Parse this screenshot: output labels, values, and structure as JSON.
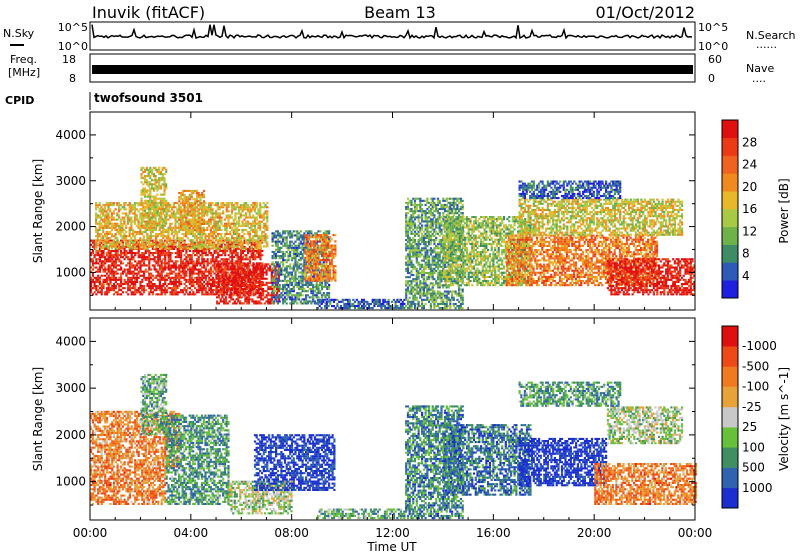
{
  "header": {
    "station": "Inuvik (fitACF)",
    "beam": "Beam 13",
    "date": "01/Oct/2012"
  },
  "sky_panel": {
    "left_label": "N.Sky",
    "right_label": "N.Search",
    "right_legend": "......",
    "left_ticks": [
      "10^5",
      "10^0"
    ],
    "right_ticks": [
      "10^5",
      "10^0"
    ]
  },
  "freq_panel": {
    "left_label_1": "Freq.",
    "left_label_2": "[MHz]",
    "left_ticks": [
      "18",
      "8"
    ],
    "right_ticks": [
      "60",
      "0"
    ],
    "right_label": "Nave",
    "right_legend": "...."
  },
  "cpid": {
    "label": "CPID",
    "value": "twofsound 3501"
  },
  "chart_data": [
    {
      "type": "heatmap",
      "quantity": "Power",
      "ylabel": "Slant Range [km]",
      "xlabel": "Time UT",
      "x_ticks": [
        "00:00",
        "04:00",
        "08:00",
        "12:00",
        "16:00",
        "20:00",
        "00:00"
      ],
      "x_range_hours": [
        0,
        24
      ],
      "y_ticks": [
        1000,
        2000,
        3000,
        4000
      ],
      "y_range_km": [
        180,
        4500
      ],
      "colorbar": {
        "label": "Power [dB]",
        "ticks": [
          4,
          8,
          12,
          16,
          20,
          24,
          28
        ],
        "colors": [
          "#1f1fe0",
          "#2f5bb8",
          "#3d8c66",
          "#6db34a",
          "#a8c943",
          "#e8b82a",
          "#f08a1f",
          "#f0621f",
          "#ec3a16",
          "#e01010"
        ]
      },
      "regions": [
        {
          "t0": 0.0,
          "t1": 6.8,
          "r0": 500,
          "r1": 1700,
          "level": 0.92
        },
        {
          "t0": 0.2,
          "t1": 7.0,
          "r0": 1500,
          "r1": 2500,
          "level": 0.55
        },
        {
          "t0": 2.0,
          "t1": 3.0,
          "r0": 2000,
          "r1": 3300,
          "level": 0.5
        },
        {
          "t0": 3.5,
          "t1": 4.5,
          "r0": 1900,
          "r1": 2800,
          "level": 0.6
        },
        {
          "t0": 5.0,
          "t1": 7.5,
          "r0": 300,
          "r1": 1200,
          "level": 0.95
        },
        {
          "t0": 7.2,
          "t1": 9.5,
          "r0": 300,
          "r1": 1900,
          "level": 0.25
        },
        {
          "t0": 8.5,
          "t1": 9.7,
          "r0": 800,
          "r1": 1800,
          "level": 0.7
        },
        {
          "t0": 9.0,
          "t1": 12.5,
          "r0": 200,
          "r1": 400,
          "level": 0.15
        },
        {
          "t0": 12.5,
          "t1": 14.8,
          "r0": 200,
          "r1": 2600,
          "level": 0.3
        },
        {
          "t0": 14.0,
          "t1": 17.5,
          "r0": 700,
          "r1": 2200,
          "level": 0.4
        },
        {
          "t0": 16.5,
          "t1": 22.5,
          "r0": 700,
          "r1": 1800,
          "level": 0.7
        },
        {
          "t0": 20.5,
          "t1": 24.0,
          "r0": 500,
          "r1": 1300,
          "level": 0.95
        },
        {
          "t0": 17.0,
          "t1": 23.5,
          "r0": 1800,
          "r1": 2600,
          "level": 0.5
        },
        {
          "t0": 17.0,
          "t1": 21.0,
          "r0": 2600,
          "r1": 3000,
          "level": 0.15
        }
      ]
    },
    {
      "type": "heatmap",
      "quantity": "Velocity",
      "ylabel": "Slant Range [km]",
      "xlabel": "Time UT",
      "x_ticks": [
        "00:00",
        "04:00",
        "08:00",
        "12:00",
        "16:00",
        "20:00",
        "00:00"
      ],
      "x_range_hours": [
        0,
        24
      ],
      "y_ticks": [
        1000,
        2000,
        3000,
        4000
      ],
      "y_range_km": [
        180,
        4500
      ],
      "colorbar": {
        "label": "Velocity [m s^-1]",
        "ticks": [
          1000,
          500,
          100,
          25,
          -25,
          -100,
          -500,
          -1000
        ],
        "colors": [
          "#1b2fd0",
          "#2f63b0",
          "#3e8f62",
          "#66c03a",
          "#c8c8c8",
          "#e8a23a",
          "#f07a1f",
          "#ee4a18",
          "#e01010"
        ]
      },
      "regions": [
        {
          "t0": 0.0,
          "t1": 3.0,
          "r0": 500,
          "r1": 1300,
          "level": 0.72
        },
        {
          "t0": 0.0,
          "t1": 3.5,
          "r0": 1300,
          "r1": 2500,
          "level": 0.7
        },
        {
          "t0": 2.0,
          "t1": 3.0,
          "r0": 2000,
          "r1": 3300,
          "level": 0.35
        },
        {
          "t0": 3.0,
          "t1": 5.5,
          "r0": 500,
          "r1": 2400,
          "level": 0.3
        },
        {
          "t0": 5.5,
          "t1": 8.0,
          "r0": 300,
          "r1": 1000,
          "level": 0.45
        },
        {
          "t0": 6.5,
          "t1": 9.7,
          "r0": 800,
          "r1": 2000,
          "level": 0.05
        },
        {
          "t0": 9.0,
          "t1": 12.5,
          "r0": 200,
          "r1": 400,
          "level": 0.35
        },
        {
          "t0": 12.5,
          "t1": 14.8,
          "r0": 200,
          "r1": 2600,
          "level": 0.25
        },
        {
          "t0": 14.0,
          "t1": 17.5,
          "r0": 700,
          "r1": 2200,
          "level": 0.2
        },
        {
          "t0": 17.0,
          "t1": 20.5,
          "r0": 900,
          "r1": 1900,
          "level": 0.02
        },
        {
          "t0": 20.0,
          "t1": 24.0,
          "r0": 500,
          "r1": 1400,
          "level": 0.72
        },
        {
          "t0": 20.5,
          "t1": 23.5,
          "r0": 1800,
          "r1": 2600,
          "level": 0.45
        },
        {
          "t0": 17.0,
          "t1": 21.0,
          "r0": 2600,
          "r1": 3100,
          "level": 0.3
        }
      ]
    }
  ]
}
